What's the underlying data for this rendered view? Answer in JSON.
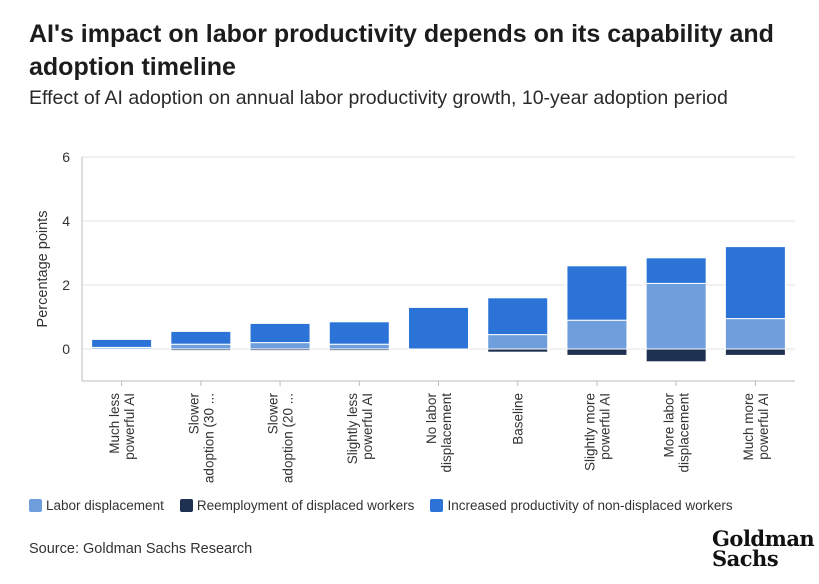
{
  "header": {
    "title": "AI's impact on labor productivity depends on its capability and adoption timeline",
    "subtitle": "Effect of AI adoption on annual labor productivity growth, 10-year adoption period"
  },
  "footer": {
    "source": "Source: Goldman Sachs Research",
    "logo_line1": "Goldman",
    "logo_line2": "Sachs"
  },
  "colors": {
    "labor_displacement": "#6e9fdc",
    "reemployment": "#1e3150",
    "increased_productivity": "#2b73d6",
    "grid": "#e3e3e3",
    "axis": "#bdbdbd"
  },
  "chart_data": {
    "type": "bar",
    "stacked": true,
    "ylabel": "Percentage points",
    "ylim": [
      -1,
      6
    ],
    "yticks": [
      0,
      2,
      4,
      6
    ],
    "grid": true,
    "legend_position": "bottom",
    "categories": [
      [
        "Much less",
        "powerful AI"
      ],
      [
        "Slower",
        "adoption (30 ..."
      ],
      [
        "Slower",
        "adoption (20 ..."
      ],
      [
        "Slightly less",
        "powerful AI"
      ],
      [
        "No labor",
        "displacement"
      ],
      [
        "Baseline"
      ],
      [
        "Slightly more",
        "powerful AI"
      ],
      [
        "More labor",
        "displacement"
      ],
      [
        "Much more",
        "powerful AI"
      ]
    ],
    "series": [
      {
        "name": "Labor displacement",
        "color_key": "labor_displacement",
        "values": [
          0.05,
          0.15,
          0.2,
          0.15,
          0.0,
          0.45,
          0.9,
          2.05,
          0.95
        ]
      },
      {
        "name": "Reemployment of displaced workers",
        "color_key": "reemployment",
        "values": [
          0.0,
          -0.05,
          -0.05,
          -0.05,
          0.0,
          -0.1,
          -0.2,
          -0.4,
          -0.2
        ]
      },
      {
        "name": "Increased productivity of non-displaced workers",
        "color_key": "increased_productivity",
        "values": [
          0.25,
          0.4,
          0.6,
          0.7,
          1.3,
          1.15,
          1.7,
          0.8,
          2.25
        ]
      }
    ]
  }
}
